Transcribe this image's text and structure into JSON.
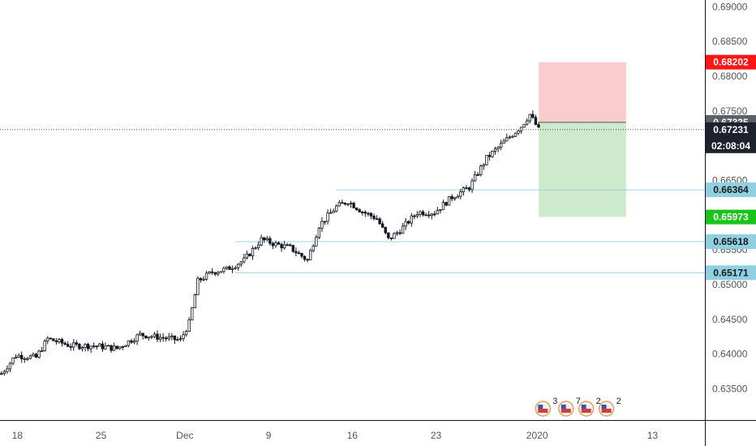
{
  "chart_data": {
    "type": "candlestick",
    "title": "",
    "xlabel": "",
    "ylabel": "",
    "y_range": [
      0.6305,
      0.6905
    ],
    "y_ticks": [
      0.635,
      0.64,
      0.645,
      0.65,
      0.655,
      0.66,
      0.665,
      0.67,
      0.675,
      0.68,
      0.685,
      0.69
    ],
    "y_tick_labels": [
      "0.63500",
      "0.64000",
      "0.64500",
      "0.65000",
      "0.65500",
      "0.66000",
      "0.66500",
      "0.67000",
      "0.67500",
      "0.68000",
      "0.68500",
      "0.69000"
    ],
    "x_ticks": [
      {
        "label": "18",
        "bar": 6
      },
      {
        "label": "25",
        "bar": 35
      },
      {
        "label": "Dec",
        "bar": 64
      },
      {
        "label": "9",
        "bar": 93
      },
      {
        "label": "16",
        "bar": 122
      },
      {
        "label": "23",
        "bar": 151
      },
      {
        "label": "2020",
        "bar": 186
      },
      {
        "label": "13",
        "bar": 226
      }
    ],
    "bar_count": 186,
    "candle_color_up": "#ffffff",
    "candle_color_down": "#131722",
    "close_path": [
      {
        "bar": 0,
        "close": 0.6372
      },
      {
        "bar": 5,
        "close": 0.6398
      },
      {
        "bar": 12,
        "close": 0.6395
      },
      {
        "bar": 16,
        "close": 0.6422
      },
      {
        "bar": 24,
        "close": 0.6412
      },
      {
        "bar": 32,
        "close": 0.6412
      },
      {
        "bar": 40,
        "close": 0.6408
      },
      {
        "bar": 48,
        "close": 0.6428
      },
      {
        "bar": 55,
        "close": 0.6424
      },
      {
        "bar": 62,
        "close": 0.642
      },
      {
        "bar": 65,
        "close": 0.6445
      },
      {
        "bar": 68,
        "close": 0.6505
      },
      {
        "bar": 73,
        "close": 0.6518
      },
      {
        "bar": 78,
        "close": 0.6522
      },
      {
        "bar": 84,
        "close": 0.6535
      },
      {
        "bar": 90,
        "close": 0.6565
      },
      {
        "bar": 95,
        "close": 0.6558
      },
      {
        "bar": 100,
        "close": 0.6553
      },
      {
        "bar": 106,
        "close": 0.6535
      },
      {
        "bar": 110,
        "close": 0.6585
      },
      {
        "bar": 116,
        "close": 0.6612
      },
      {
        "bar": 120,
        "close": 0.662
      },
      {
        "bar": 125,
        "close": 0.6605
      },
      {
        "bar": 130,
        "close": 0.6595
      },
      {
        "bar": 134,
        "close": 0.6565
      },
      {
        "bar": 138,
        "close": 0.6578
      },
      {
        "bar": 144,
        "close": 0.6604
      },
      {
        "bar": 150,
        "close": 0.6604
      },
      {
        "bar": 156,
        "close": 0.6626
      },
      {
        "bar": 162,
        "close": 0.664
      },
      {
        "bar": 168,
        "close": 0.6682
      },
      {
        "bar": 174,
        "close": 0.6705
      },
      {
        "bar": 180,
        "close": 0.6728
      },
      {
        "bar": 183,
        "close": 0.6745
      },
      {
        "bar": 186,
        "close": 0.6723
      }
    ],
    "levels": [
      {
        "value": 0.66364,
        "label": "0.66364"
      },
      {
        "value": 0.65618,
        "label": "0.65618"
      },
      {
        "value": 0.65171,
        "label": "0.65171"
      }
    ],
    "position": {
      "entry": 0.67335,
      "stop": 0.68202,
      "target": 0.65973,
      "entry_label": "0.67335",
      "stop_label": "0.68202",
      "target_label": "0.65973",
      "from_bar": 186,
      "to_bar": 214
    },
    "last_price": {
      "value": 0.67231,
      "label": "0.67231",
      "countdown": "02:08:04"
    },
    "events": [
      {
        "count": "3",
        "bar": 188
      },
      {
        "count": "7",
        "bar": 196
      },
      {
        "count": "2",
        "bar": 203
      },
      {
        "count": "2",
        "bar": 210
      }
    ],
    "colors": {
      "level_line": "#9ad4e6",
      "level_tag": "#8fd0e2",
      "stop_zone": "#f8c8c8",
      "target_zone": "#c8e8c8",
      "stop_tag": "#ff1515",
      "target_tag": "#1bc41b",
      "entry_tag": "#5d606b",
      "last_tag": "#1e222d"
    }
  }
}
